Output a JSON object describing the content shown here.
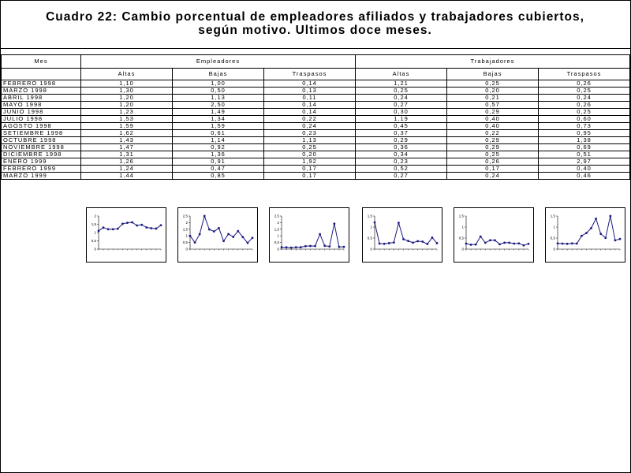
{
  "title": {
    "line1": "Cuadro 22: Cambio porcentual de empleadores afiliados y trabajadores cubiertos,",
    "line2": "según motivo. Ultimos doce meses."
  },
  "table": {
    "mes_label": "Mes",
    "group1": "Empleadores",
    "group2": "Trabajadores",
    "subheaders": [
      "Altas",
      "Bajas",
      "Traspasos",
      "Altas",
      "Bajas",
      "Traspasos"
    ],
    "rows": [
      {
        "mes": "FEBRERO 1998",
        "v": [
          "1,10",
          "1,00",
          "0,14",
          "1,21",
          "0,25",
          "0,26"
        ]
      },
      {
        "mes": "MARZO 1998",
        "v": [
          "1,30",
          "0,50",
          "0,13",
          "0,25",
          "0,20",
          "0,25"
        ]
      },
      {
        "mes": "ABRIL 1998",
        "v": [
          "1,20",
          "1,13",
          "0,11",
          "0,24",
          "0,21",
          "0,24"
        ]
      },
      {
        "mes": "MAYO 1998",
        "v": [
          "1,20",
          "2,50",
          "0,14",
          "0,27",
          "0,57",
          "0,26"
        ]
      },
      {
        "mes": "JUNIO 1998",
        "v": [
          "1,23",
          "1,49",
          "0,14",
          "0,30",
          "0,29",
          "0,25"
        ]
      },
      {
        "mes": "JULIO 1998",
        "v": [
          "1,53",
          "1,34",
          "0,22",
          "1,19",
          "0,40",
          "0,60"
        ]
      },
      {
        "mes": "AGOSTO 1998",
        "v": [
          "1,59",
          "1,59",
          "0,24",
          "0,45",
          "0,40",
          "0,73"
        ]
      },
      {
        "mes": "SETIEMBRE 1998",
        "v": [
          "1,62",
          "0,61",
          "0,23",
          "0,37",
          "0,22",
          "0,95"
        ]
      },
      {
        "mes": "OCTUBRE 1998",
        "v": [
          "1,43",
          "1,14",
          "1,13",
          "0,29",
          "0,29",
          "1,38"
        ]
      },
      {
        "mes": "NOVIEMBRE 1998",
        "v": [
          "1,47",
          "0,92",
          "0,25",
          "0,36",
          "0,29",
          "0,69"
        ]
      },
      {
        "mes": "DICIEMBRE 1998",
        "v": [
          "1,31",
          "1,36",
          "0,20",
          "0,34",
          "0,25",
          "0,51"
        ]
      },
      {
        "mes": "ENERO 1999",
        "v": [
          "1,26",
          "0,91",
          "1,92",
          "0,23",
          "0,26",
          "2,97"
        ]
      },
      {
        "mes": "FEBRERO 1999",
        "v": [
          "1,24",
          "0,47",
          "0,17",
          "0,52",
          "0,17",
          "0,40"
        ]
      },
      {
        "mes": "MARZO 1999",
        "v": [
          "1,44",
          "0,85",
          "0,17",
          "0,27",
          "0,24",
          "0,46"
        ]
      }
    ]
  },
  "chart_data": [
    {
      "type": "line",
      "color": "#1a1a80",
      "ylim": [
        0,
        2
      ],
      "tick_labels": [
        "2",
        "1,5",
        "1",
        "0,5",
        "0"
      ],
      "series": [
        {
          "values": [
            1.1,
            1.3,
            1.2,
            1.2,
            1.23,
            1.53,
            1.59,
            1.62,
            1.43,
            1.47,
            1.31,
            1.26,
            1.24,
            1.44
          ]
        }
      ]
    },
    {
      "type": "line",
      "color": "#1a1a80",
      "ylim": [
        0,
        2.5
      ],
      "tick_labels": [
        "2,5",
        "2",
        "1,5",
        "1",
        "0,5",
        "0"
      ],
      "series": [
        {
          "values": [
            1.0,
            0.5,
            1.13,
            2.5,
            1.49,
            1.34,
            1.59,
            0.61,
            1.14,
            0.92,
            1.36,
            0.91,
            0.47,
            0.85
          ]
        }
      ]
    },
    {
      "type": "line",
      "color": "#1a1a80",
      "ylim": [
        0,
        2.5
      ],
      "tick_labels": [
        "2,5",
        "2",
        "1,5",
        "1",
        "0,5",
        "0"
      ],
      "series": [
        {
          "values": [
            0.14,
            0.13,
            0.11,
            0.14,
            0.14,
            0.22,
            0.24,
            0.23,
            1.13,
            0.25,
            0.2,
            1.92,
            0.17,
            0.17
          ]
        }
      ]
    },
    {
      "type": "line",
      "color": "#1a1a80",
      "ylim": [
        0,
        1.5
      ],
      "tick_labels": [
        "1,5",
        "1",
        "0,5",
        "0"
      ],
      "series": [
        {
          "values": [
            1.21,
            0.25,
            0.24,
            0.27,
            0.3,
            1.19,
            0.45,
            0.37,
            0.29,
            0.36,
            0.34,
            0.23,
            0.52,
            0.27
          ]
        }
      ]
    },
    {
      "type": "line",
      "color": "#1a1a80",
      "ylim": [
        0,
        1.5
      ],
      "tick_labels": [
        "1,5",
        "1",
        "0,5",
        "0"
      ],
      "series": [
        {
          "values": [
            0.25,
            0.2,
            0.21,
            0.57,
            0.29,
            0.4,
            0.4,
            0.22,
            0.29,
            0.29,
            0.25,
            0.26,
            0.17,
            0.24
          ]
        }
      ]
    },
    {
      "type": "line",
      "color": "#1a1a80",
      "ylim": [
        0,
        1.5
      ],
      "tick_labels": [
        "1,5",
        "1",
        "0,5",
        "0"
      ],
      "series": [
        {
          "values": [
            0.26,
            0.25,
            0.24,
            0.26,
            0.25,
            0.6,
            0.73,
            0.95,
            1.38,
            0.69,
            0.51,
            2.97,
            0.4,
            0.46
          ]
        }
      ]
    }
  ]
}
